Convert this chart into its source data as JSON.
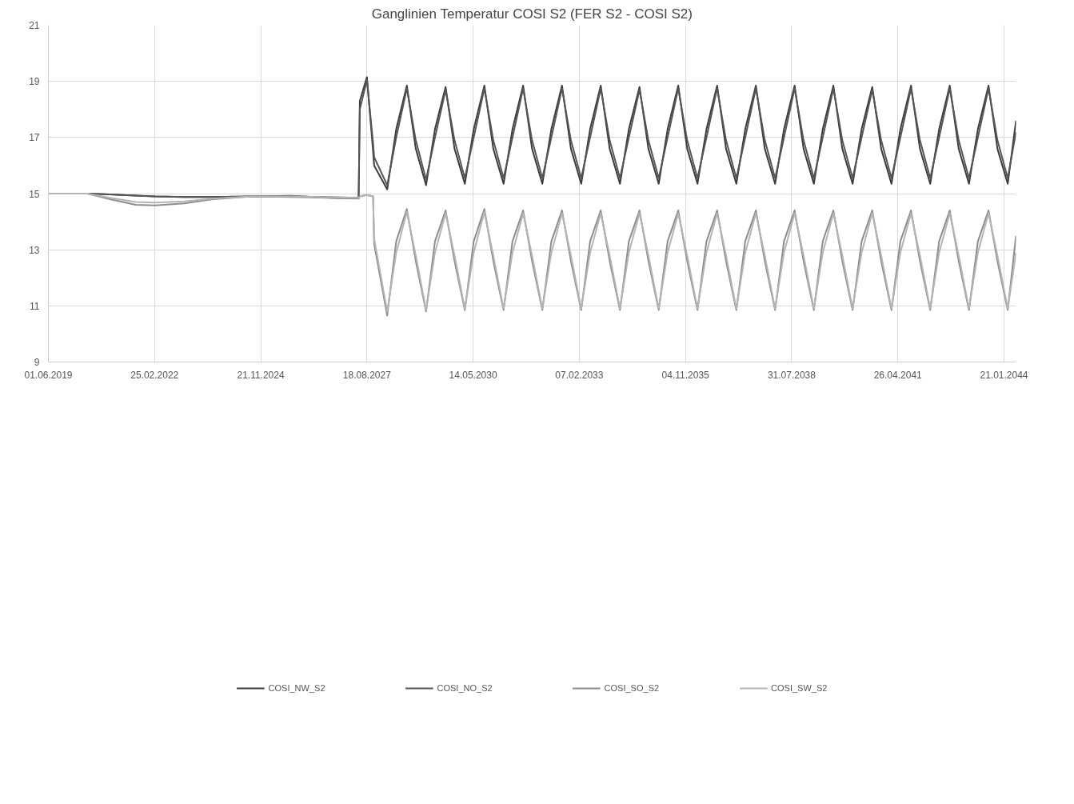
{
  "chart_data": {
    "type": "line",
    "title": "Ganglinien Temperatur COSI S2 (FER S2 - COSI S2)",
    "x": [
      "2019-06-01",
      "2020-06-01",
      "2021-01-01",
      "2021-09-01",
      "2022-03-01",
      "2022-12-01",
      "2023-09-01",
      "2024-09-01",
      "2025-09-01",
      "2026-09-01",
      "2027-06-01",
      "2027-06-12",
      "2027-08-18",
      "2027-10-15",
      "2027-10-25",
      "2028-02-25",
      "2028-05-20",
      "2028-08-28",
      "2028-11-20",
      "2029-02-25",
      "2029-05-20",
      "2029-08-28",
      "2029-11-20",
      "2030-02-25",
      "2030-05-20",
      "2030-08-28",
      "2030-11-20",
      "2031-02-25",
      "2031-05-20",
      "2031-08-28",
      "2031-11-20",
      "2032-02-25",
      "2032-05-20",
      "2032-08-28",
      "2032-11-20",
      "2033-02-25",
      "2033-05-20",
      "2033-08-28",
      "2033-11-20",
      "2034-02-25",
      "2034-05-20",
      "2034-08-28",
      "2034-11-20",
      "2035-02-25",
      "2035-05-20",
      "2035-08-28",
      "2035-11-20",
      "2036-02-25",
      "2036-05-20",
      "2036-08-28",
      "2036-11-20",
      "2037-02-25",
      "2037-05-20",
      "2037-08-28",
      "2037-11-20",
      "2038-02-25",
      "2038-05-20",
      "2038-08-28",
      "2038-11-20",
      "2039-02-25",
      "2039-05-20",
      "2039-08-28",
      "2039-11-20",
      "2040-02-25",
      "2040-05-20",
      "2040-08-28",
      "2040-11-20",
      "2041-02-25",
      "2041-05-20",
      "2041-08-28",
      "2041-11-20",
      "2042-02-25",
      "2042-05-20",
      "2042-08-28",
      "2042-11-20",
      "2043-02-25",
      "2043-05-20",
      "2043-08-28",
      "2043-11-20",
      "2044-02-25",
      "2044-05-13"
    ],
    "series": [
      {
        "name": "COSI_NW_S2",
        "color": "#3c3c3c",
        "values": [
          15,
          15,
          14.97,
          14.93,
          14.9,
          14.88,
          14.88,
          14.9,
          14.9,
          14.87,
          14.85,
          18.3,
          19.15,
          16.5,
          16.0,
          15.15,
          17.3,
          18.85,
          16.6,
          15.3,
          17.3,
          18.8,
          16.6,
          15.35,
          17.3,
          18.85,
          16.6,
          15.35,
          17.3,
          18.85,
          16.6,
          15.35,
          17.3,
          18.85,
          16.6,
          15.35,
          17.3,
          18.85,
          16.6,
          15.35,
          17.3,
          18.8,
          16.6,
          15.35,
          17.3,
          18.85,
          16.6,
          15.35,
          17.3,
          18.85,
          16.6,
          15.35,
          17.3,
          18.85,
          16.6,
          15.35,
          17.3,
          18.85,
          16.6,
          15.35,
          17.3,
          18.85,
          16.6,
          15.35,
          17.3,
          18.8,
          16.6,
          15.35,
          17.3,
          18.85,
          16.6,
          15.35,
          17.3,
          18.85,
          16.6,
          15.35,
          17.3,
          18.85,
          16.6,
          15.35,
          17.6
        ]
      },
      {
        "name": "COSI_NO_S2",
        "color": "#555555",
        "values": [
          15,
          15,
          14.97,
          14.93,
          14.9,
          14.88,
          14.88,
          14.9,
          14.92,
          14.85,
          14.83,
          18.0,
          19.05,
          16.8,
          16.3,
          15.3,
          17.0,
          18.75,
          16.9,
          15.5,
          17.0,
          18.7,
          16.9,
          15.55,
          17.0,
          18.75,
          16.9,
          15.55,
          17.0,
          18.75,
          16.9,
          15.55,
          17.0,
          18.75,
          16.9,
          15.55,
          17.0,
          18.75,
          16.9,
          15.55,
          17.0,
          18.7,
          16.9,
          15.55,
          17.0,
          18.75,
          16.9,
          15.55,
          17.0,
          18.75,
          16.9,
          15.55,
          17.0,
          18.75,
          16.9,
          15.55,
          17.0,
          18.75,
          16.9,
          15.55,
          17.0,
          18.75,
          16.9,
          15.55,
          17.0,
          18.7,
          16.9,
          15.55,
          17.0,
          18.75,
          16.9,
          15.55,
          17.0,
          18.75,
          16.9,
          15.55,
          17.0,
          18.75,
          16.9,
          15.55,
          17.2
        ]
      },
      {
        "name": "COSI_SO_S2",
        "color": "#8c8c8c",
        "values": [
          15,
          15,
          14.8,
          14.6,
          14.58,
          14.65,
          14.8,
          14.9,
          14.88,
          14.85,
          14.82,
          14.9,
          14.95,
          14.9,
          13.2,
          10.65,
          13.3,
          14.45,
          12.6,
          10.8,
          13.3,
          14.4,
          12.6,
          10.85,
          13.3,
          14.45,
          12.6,
          10.85,
          13.3,
          14.4,
          12.6,
          10.85,
          13.3,
          14.4,
          12.6,
          10.85,
          13.3,
          14.4,
          12.6,
          10.85,
          13.3,
          14.4,
          12.6,
          10.85,
          13.3,
          14.4,
          12.6,
          10.85,
          13.3,
          14.4,
          12.6,
          10.85,
          13.3,
          14.4,
          12.6,
          10.85,
          13.3,
          14.4,
          12.6,
          10.85,
          13.3,
          14.4,
          12.6,
          10.85,
          13.3,
          14.4,
          12.6,
          10.85,
          13.3,
          14.4,
          12.6,
          10.85,
          13.3,
          14.4,
          12.6,
          10.85,
          13.3,
          14.4,
          12.6,
          10.85,
          13.5
        ]
      },
      {
        "name": "COSI_SW_S2",
        "color": "#b4b4b4",
        "values": [
          15,
          15,
          14.85,
          14.7,
          14.68,
          14.72,
          14.82,
          14.9,
          14.9,
          14.87,
          14.85,
          14.9,
          14.95,
          14.9,
          13.4,
          10.8,
          12.9,
          14.35,
          12.8,
          10.85,
          12.9,
          14.3,
          12.8,
          10.9,
          12.9,
          14.35,
          12.8,
          10.9,
          12.9,
          14.3,
          12.8,
          10.9,
          12.9,
          14.3,
          12.8,
          10.9,
          12.9,
          14.3,
          12.8,
          10.9,
          12.9,
          14.3,
          12.8,
          10.9,
          12.9,
          14.3,
          12.8,
          10.9,
          12.9,
          14.3,
          12.8,
          10.9,
          12.9,
          14.3,
          12.8,
          10.9,
          12.9,
          14.3,
          12.8,
          10.9,
          12.9,
          14.3,
          12.8,
          10.9,
          12.9,
          14.3,
          12.8,
          10.9,
          12.9,
          14.3,
          12.8,
          10.9,
          12.9,
          14.3,
          12.8,
          10.9,
          12.9,
          14.3,
          12.8,
          10.9,
          12.9
        ]
      }
    ],
    "xlim": [
      "2019-06-01",
      "2044-05-13"
    ],
    "xticks": [
      {
        "value": "2019-06-01",
        "label": "01.06.2019"
      },
      {
        "value": "2022-02-25",
        "label": "25.02.2022"
      },
      {
        "value": "2024-11-21",
        "label": "21.11.2024"
      },
      {
        "value": "2027-08-18",
        "label": "18.08.2027"
      },
      {
        "value": "2030-05-14",
        "label": "14.05.2030"
      },
      {
        "value": "2033-02-07",
        "label": "07.02.2033"
      },
      {
        "value": "2035-11-04",
        "label": "04.11.2035"
      },
      {
        "value": "2038-07-31",
        "label": "31.07.2038"
      },
      {
        "value": "2041-04-26",
        "label": "26.04.2041"
      },
      {
        "value": "2044-01-21",
        "label": "21.01.2044"
      }
    ],
    "ylim": [
      9,
      21
    ],
    "yticks": [
      9,
      11,
      13,
      15,
      17,
      19,
      21
    ],
    "grid": true,
    "legend": "bottom",
    "marker": "none",
    "line_style": "solid"
  }
}
